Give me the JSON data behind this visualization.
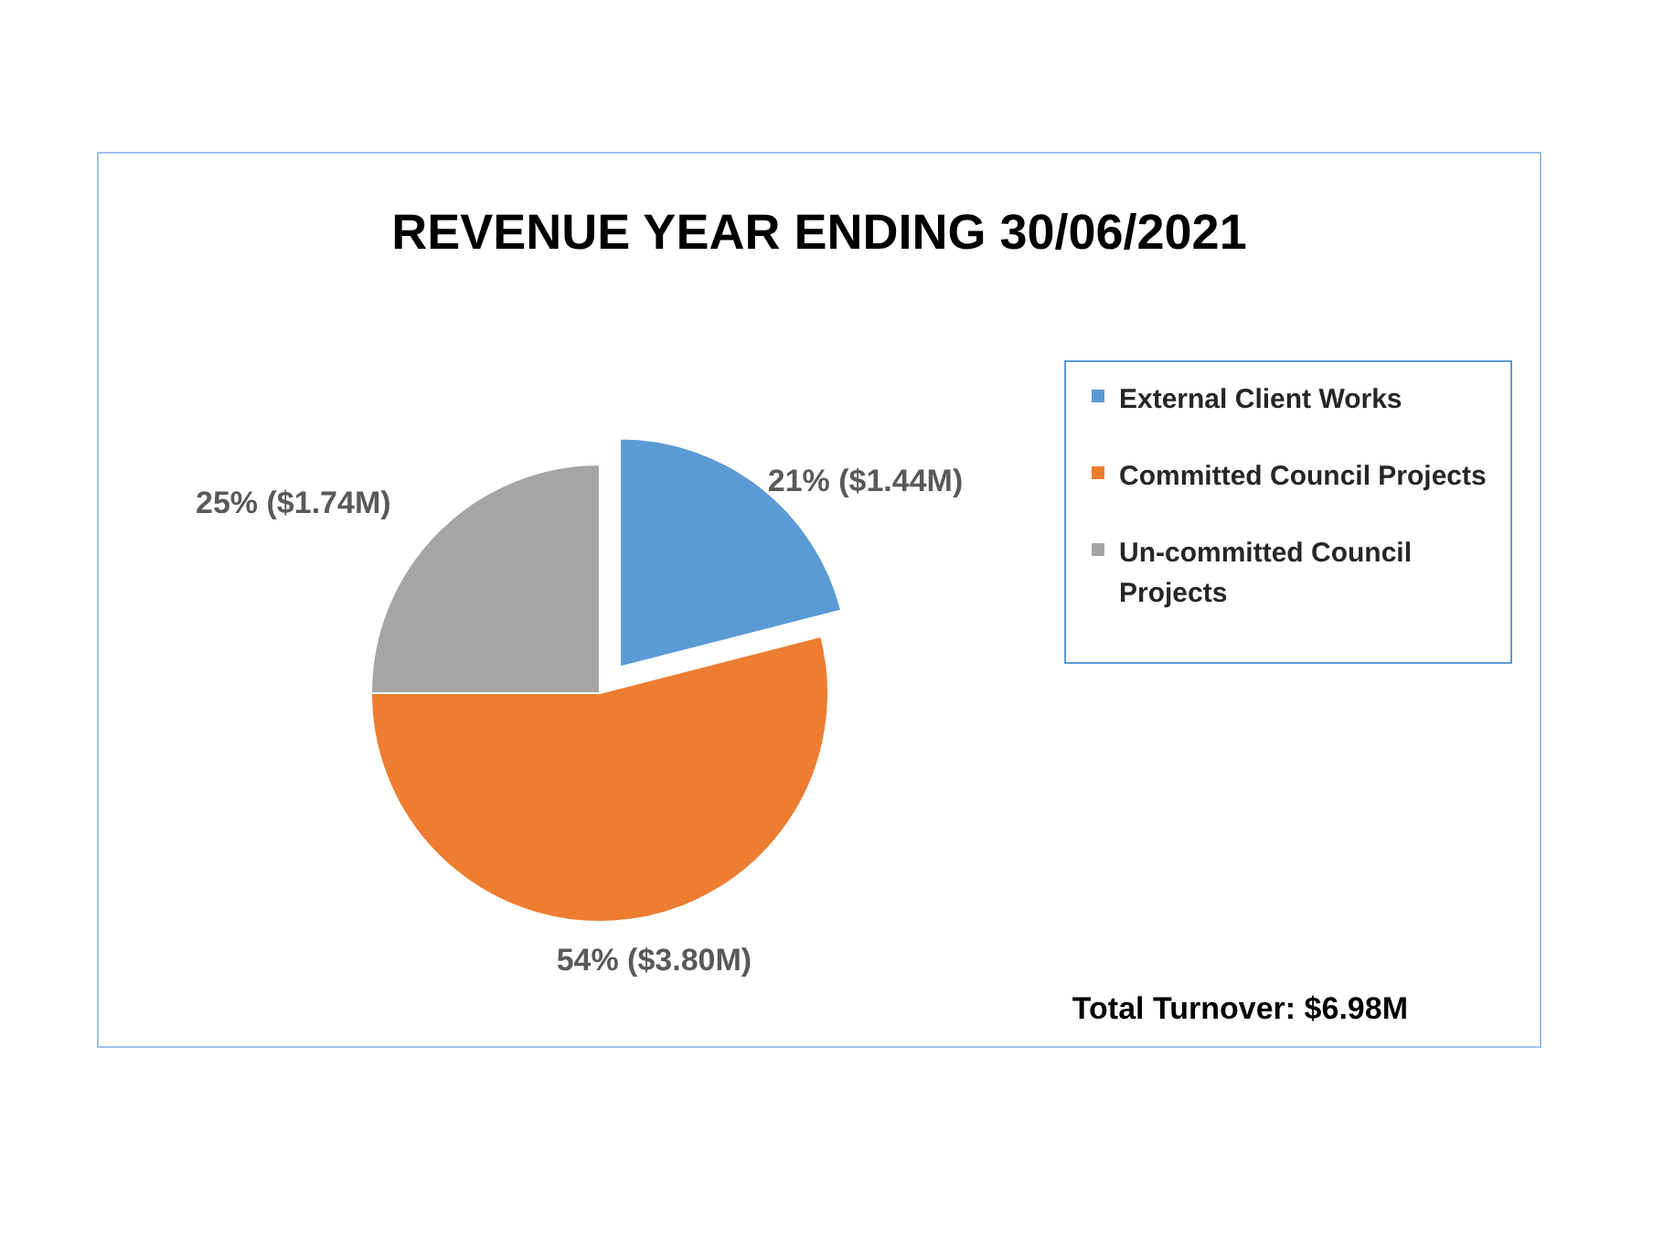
{
  "chart_data": {
    "type": "pie",
    "title": "REVENUE YEAR ENDING 30/06/2021",
    "categories": [
      "External Client Works",
      "Committed Council Projects",
      "Un-committed Council Projects"
    ],
    "values": [
      21,
      54,
      25
    ],
    "colors": [
      "#5b9bd5",
      "#ed7d31",
      "#a5a5a5"
    ],
    "value_labels": [
      "21% ($1.44M)",
      "54% ($3.80M)",
      "25% ($1.74M)"
    ],
    "legend": "right",
    "annotations": [
      "Total Turnover: $6.98M"
    ]
  }
}
